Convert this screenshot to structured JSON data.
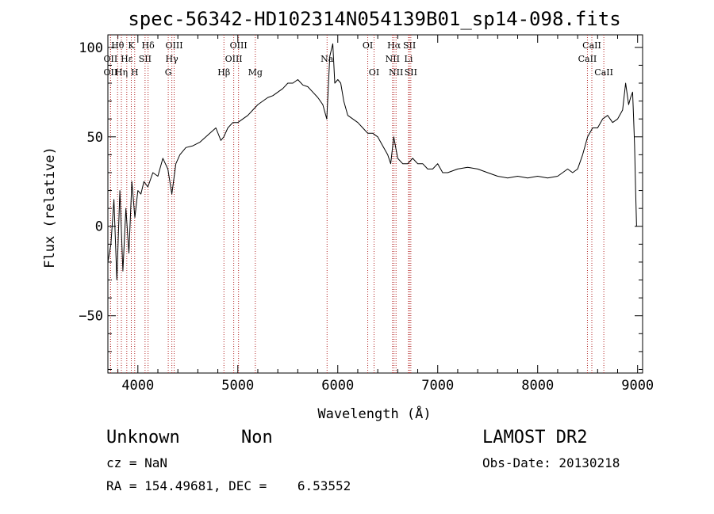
{
  "chart_data": {
    "type": "line",
    "title": "spec-56342-HD102314N054139B01_sp14-098.fits",
    "xlabel": "Wavelength (Å)",
    "ylabel": "Flux (relative)",
    "xlim": [
      3700,
      9050
    ],
    "ylim": [
      -82,
      107
    ],
    "xticks": [
      4000,
      5000,
      6000,
      7000,
      8000,
      9000
    ],
    "yticks": [
      -50,
      0,
      50,
      100
    ],
    "series": [
      {
        "x": [
          3700,
          3730,
          3760,
          3790,
          3820,
          3850,
          3880,
          3910,
          3940,
          3970,
          4000,
          4030,
          4060,
          4100,
          4150,
          4200,
          4250,
          4300,
          4340,
          4380,
          4420,
          4480,
          4550,
          4620,
          4680,
          4720,
          4780,
          4830,
          4860,
          4900,
          4950,
          5000,
          5050,
          5100,
          5150,
          5200,
          5250,
          5300,
          5350,
          5400,
          5450,
          5500,
          5550,
          5600,
          5650,
          5700,
          5750,
          5800,
          5850,
          5890,
          5920,
          5950,
          5970,
          6000,
          6030,
          6060,
          6100,
          6150,
          6200,
          6250,
          6300,
          6350,
          6400,
          6450,
          6500,
          6530,
          6560,
          6600,
          6650,
          6700,
          6750,
          6800,
          6850,
          6900,
          6950,
          7000,
          7050,
          7100,
          7200,
          7300,
          7400,
          7500,
          7600,
          7700,
          7800,
          7900,
          8000,
          8100,
          8200,
          8250,
          8300,
          8350,
          8400,
          8450,
          8500,
          8550,
          8600,
          8650,
          8700,
          8750,
          8800,
          8850,
          8880,
          8910,
          8930,
          8950,
          8960,
          8970,
          8980,
          8990
        ],
        "y": [
          -20,
          -10,
          15,
          -30,
          20,
          -25,
          10,
          -15,
          25,
          5,
          20,
          18,
          25,
          22,
          30,
          28,
          38,
          32,
          18,
          35,
          40,
          44,
          45,
          47,
          50,
          52,
          55,
          48,
          50,
          55,
          58,
          58,
          60,
          62,
          65,
          68,
          70,
          72,
          73,
          75,
          77,
          80,
          80,
          82,
          79,
          78,
          75,
          72,
          68,
          60,
          95,
          102,
          80,
          82,
          80,
          70,
          62,
          60,
          58,
          55,
          52,
          52,
          50,
          45,
          40,
          35,
          50,
          38,
          35,
          35,
          38,
          35,
          35,
          32,
          32,
          35,
          30,
          30,
          32,
          33,
          32,
          30,
          28,
          27,
          28,
          27,
          28,
          27,
          28,
          30,
          32,
          30,
          32,
          40,
          50,
          55,
          55,
          60,
          62,
          58,
          60,
          65,
          80,
          68,
          72,
          75,
          60,
          45,
          20,
          0
        ]
      }
    ],
    "spectral_lines": [
      {
        "label": "Hθ",
        "x": 3797,
        "row": 0
      },
      {
        "label": "OII",
        "x": 3727,
        "row": 1
      },
      {
        "label": "OII",
        "x": 3727,
        "row": 2
      },
      {
        "label": "Hε",
        "x": 3889,
        "row": 1
      },
      {
        "label": "Hη",
        "x": 3835,
        "row": 2
      },
      {
        "label": "K",
        "x": 3934,
        "row": 0
      },
      {
        "label": "H",
        "x": 3968,
        "row": 2
      },
      {
        "label": "Hδ",
        "x": 4102,
        "row": 0
      },
      {
        "label": "SII",
        "x": 4072,
        "row": 1
      },
      {
        "label": "OIII",
        "x": 4363,
        "row": 0
      },
      {
        "label": "Hγ",
        "x": 4340,
        "row": 1
      },
      {
        "label": "G",
        "x": 4304,
        "row": 2
      },
      {
        "label": "Hβ",
        "x": 4861,
        "row": 2
      },
      {
        "label": "OIII",
        "x": 5007,
        "row": 0
      },
      {
        "label": "OIII",
        "x": 4959,
        "row": 1
      },
      {
        "label": "Mg",
        "x": 5175,
        "row": 2
      },
      {
        "label": "Na",
        "x": 5893,
        "row": 1
      },
      {
        "label": "OI",
        "x": 6300,
        "row": 0
      },
      {
        "label": "OI",
        "x": 6363,
        "row": 2
      },
      {
        "label": "Hα",
        "x": 6563,
        "row": 0
      },
      {
        "label": "SII",
        "x": 6717,
        "row": 0
      },
      {
        "label": "NII",
        "x": 6548,
        "row": 1
      },
      {
        "label": "Li",
        "x": 6708,
        "row": 1
      },
      {
        "label": "NII",
        "x": 6583,
        "row": 2
      },
      {
        "label": "SII",
        "x": 6731,
        "row": 2
      },
      {
        "label": "CaII",
        "x": 8542,
        "row": 0
      },
      {
        "label": "CaII",
        "x": 8498,
        "row": 1
      },
      {
        "label": "CaII",
        "x": 8662,
        "row": 2
      }
    ],
    "colors": {
      "spectrum": "#000000",
      "lines": "#b22222",
      "axes": "#000000"
    }
  },
  "info": {
    "class": "Unknown",
    "subclass": "Non",
    "survey": "LAMOST DR2",
    "cz": "cz = NaN",
    "obs_date": "Obs-Date: 20130218",
    "radec": "RA = 154.49681, DEC =    6.53552"
  }
}
